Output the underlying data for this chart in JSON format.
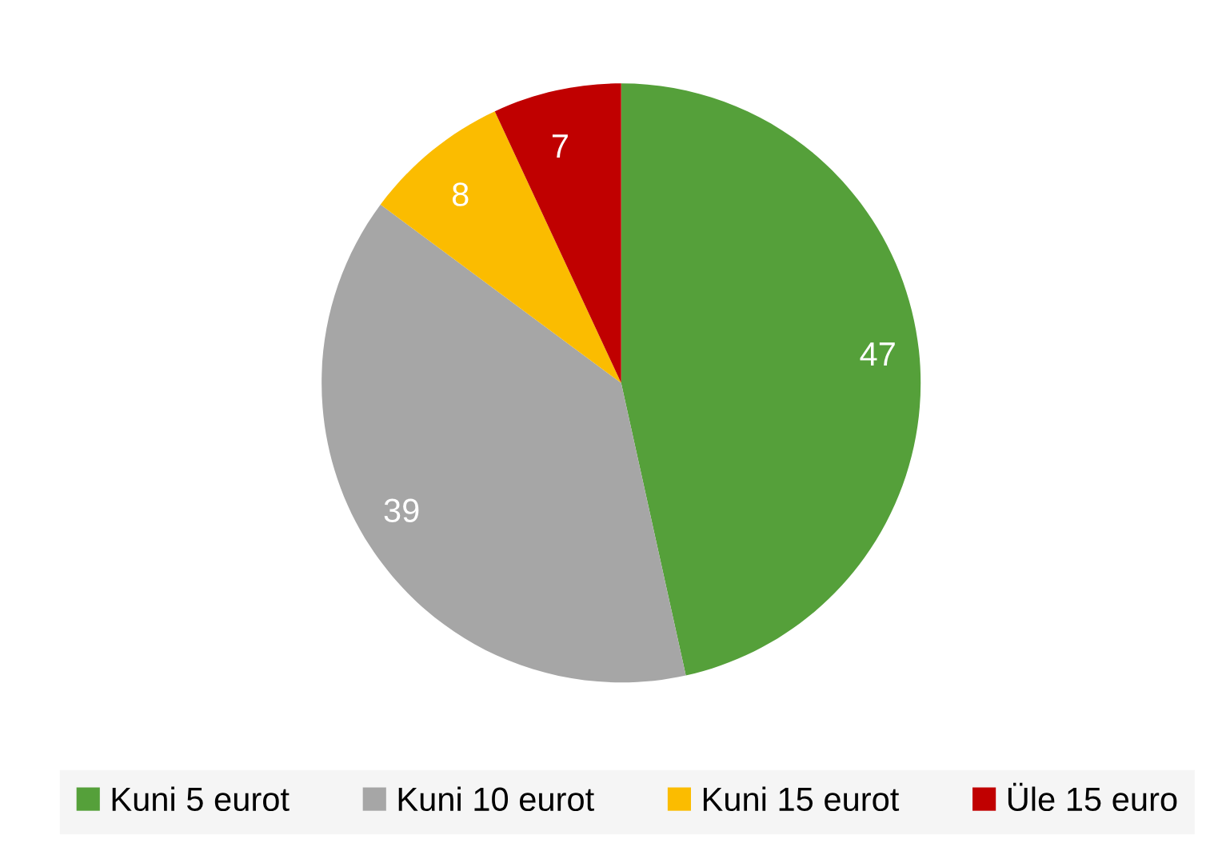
{
  "chart_data": {
    "type": "pie",
    "categories": [
      "Kuni 5 eurot",
      "Kuni 10 eurot",
      "Kuni 15 eurot",
      "Üle 15 euro"
    ],
    "values": [
      47,
      39,
      8,
      7
    ],
    "colors": [
      "#55a03a",
      "#a6a6a6",
      "#fbbc00",
      "#c00000"
    ],
    "data_labels": true,
    "legend": "bottom"
  }
}
